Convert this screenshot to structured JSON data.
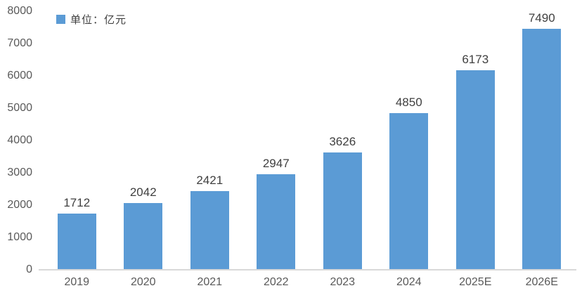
{
  "legend": {
    "label": "单位：亿元",
    "swatch_color": "#5B9BD5"
  },
  "chart_data": {
    "type": "bar",
    "categories": [
      "2019",
      "2020",
      "2021",
      "2022",
      "2023",
      "2024",
      "2025E",
      "2026E"
    ],
    "values": [
      1712,
      2042,
      2421,
      2947,
      3626,
      4850,
      6173,
      7490
    ],
    "data_labels": [
      "1712",
      "2042",
      "2421",
      "2947",
      "3626",
      "4850",
      "6173",
      "7490"
    ],
    "title": "",
    "xlabel": "",
    "ylabel": "",
    "legend_entries": [
      "单位：亿元"
    ],
    "legend_position": "top-left",
    "ylim": [
      0,
      8000
    ],
    "y_ticks": [
      "0",
      "1000",
      "2000",
      "3000",
      "4000",
      "5000",
      "6000",
      "7000",
      "8000"
    ],
    "grid": false,
    "bar_color": "#5B9BD5",
    "axis_line_color": "#D9D9D9",
    "tick_text_color": "#595959",
    "data_label_color": "#404040"
  }
}
